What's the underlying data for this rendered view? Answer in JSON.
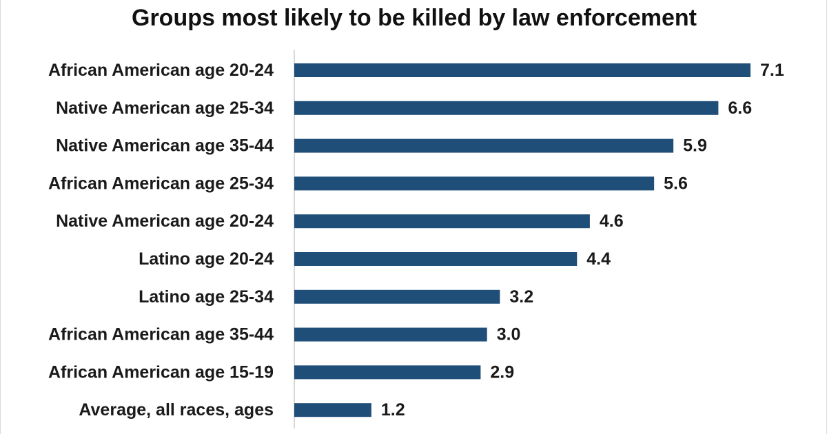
{
  "chart_data": {
    "type": "bar",
    "orientation": "horizontal",
    "title": "Groups most likely to be killed by law enforcement",
    "xlabel": "",
    "ylabel": "",
    "categories": [
      "African American age 20-24",
      "Native American age 25-34",
      "Native American age 35-44",
      "African American age 25-34",
      "Native American age 20-24",
      "Latino age 20-24",
      "Latino age 25-34",
      "African American age 35-44",
      "African American age 15-19",
      "Average, all races, ages"
    ],
    "values": [
      7.1,
      6.6,
      5.9,
      5.6,
      4.6,
      4.4,
      3.2,
      3.0,
      2.9,
      1.2
    ],
    "value_labels": [
      "7.1",
      "6.6",
      "5.9",
      "5.6",
      "4.6",
      "4.4",
      "3.2",
      "3.0",
      "2.9",
      "1.2"
    ],
    "xlim": [
      0,
      7.1
    ],
    "grid": false,
    "legend": "none",
    "bar_color": "#1f4e79"
  }
}
